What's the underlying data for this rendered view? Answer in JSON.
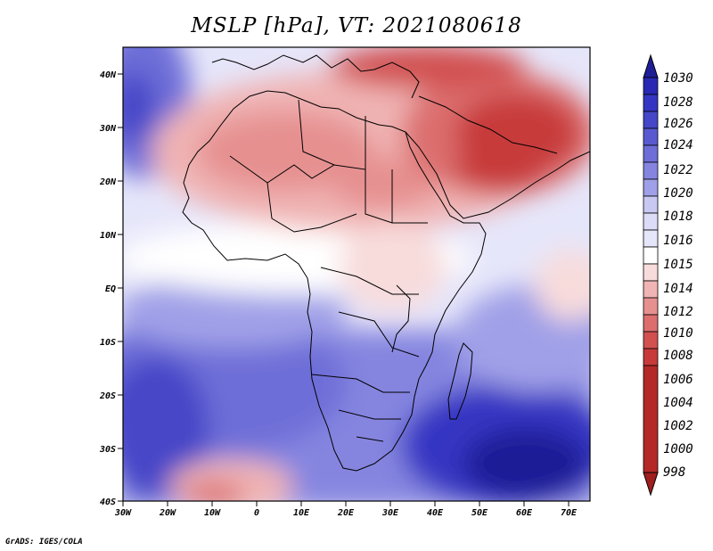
{
  "title": "MSLP [hPa], VT: 2021080618",
  "credit": "GrADS: IGES/COLA",
  "lat_labels": [
    "40N",
    "30N",
    "20N",
    "10N",
    "EQ",
    "10S",
    "20S",
    "30S",
    "40S"
  ],
  "lon_labels": [
    "30W",
    "20W",
    "10W",
    "0",
    "10E",
    "20E",
    "30E",
    "40E",
    "50E",
    "60E",
    "70E"
  ],
  "colorbar": {
    "levels": [
      "1030",
      "1028",
      "1026",
      "1024",
      "1022",
      "1020",
      "1018",
      "1016",
      "1015",
      "1014",
      "1012",
      "1010",
      "1008",
      "1006",
      "1004",
      "1002",
      "1000",
      "998"
    ],
    "colors": [
      "#1e1e96",
      "#2828b4",
      "#3535c3",
      "#4646c8",
      "#5a5ad0",
      "#6e6ed8",
      "#8585e0",
      "#a0a0e8",
      "#c8c8f2",
      "#e6e6fa",
      "#ffffff",
      "#f8dcdc",
      "#f0b4b4",
      "#e69090",
      "#dc6e6e",
      "#d25050",
      "#c83a3a",
      "#b42828",
      "#a01e1e"
    ]
  },
  "map_colors": {
    "land_outline": "#000000",
    "strong_high": "#2828b4",
    "high": "#6e6ed8",
    "weak_high": "#c8c8f2",
    "neutral": "#ffffff",
    "weak_low": "#f0b4b4",
    "low": "#dc6e6e",
    "strong_low": "#c83a3a"
  }
}
